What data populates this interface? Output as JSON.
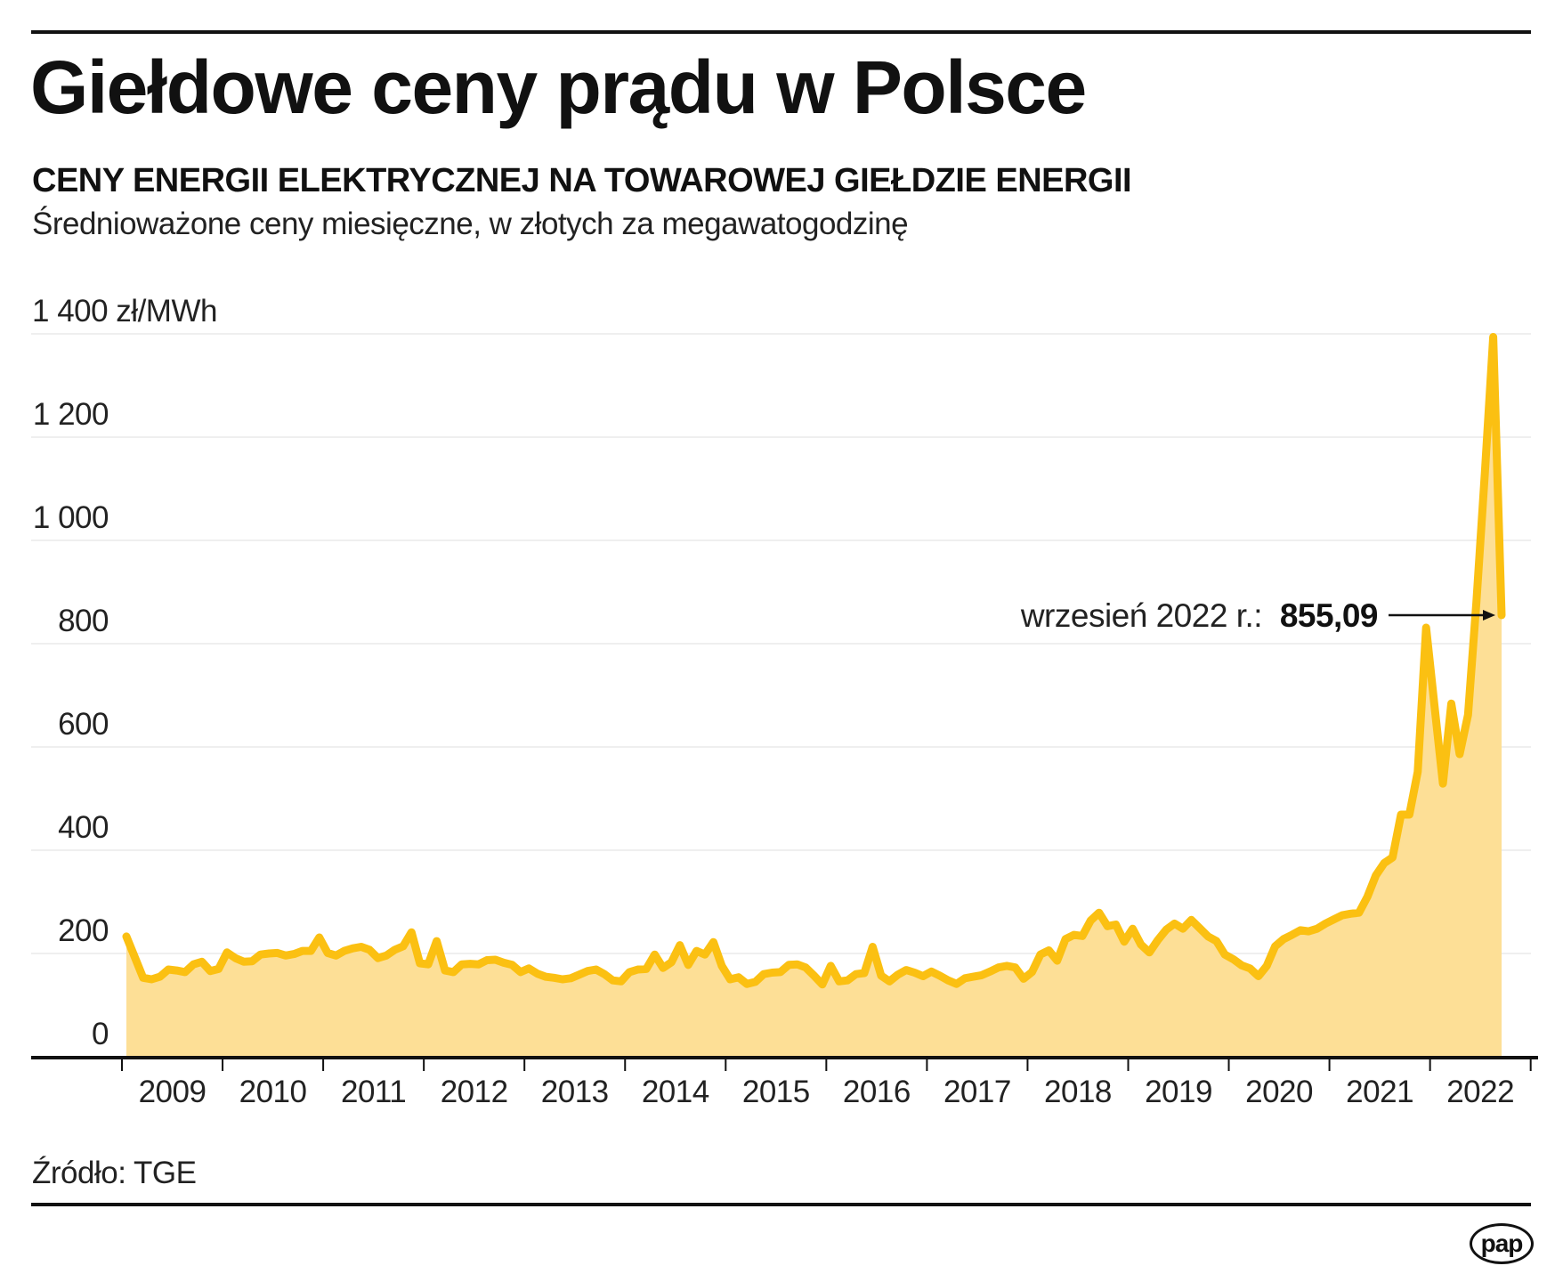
{
  "header": {
    "title": "Giełdowe ceny prądu w Polsce",
    "subtitle": "CENY ENERGII ELEKTRYCZNEJ NA TOWAROWEJ GIEŁDZIE ENERGII",
    "description": "Średnioważone ceny miesięczne, w złotych za megawatogodzinę"
  },
  "footer": {
    "source": "Źródło: TGE",
    "logo": "pap"
  },
  "colors": {
    "line": "#FBC012",
    "area": "#FDDF96",
    "grid": "#EFEFEF",
    "axis": "#111111",
    "text": "#222222"
  },
  "chart_data": {
    "type": "area",
    "title": "Giełdowe ceny prądu w Polsce",
    "subtitle": "CENY ENERGII ELEKTRYCZNEJ NA TOWAROWEJ GIEŁDZIE ENERGII",
    "xlabel": "",
    "ylabel": "zł/MWh",
    "ylim": [
      0,
      1400
    ],
    "yticks": [
      0,
      200,
      400,
      600,
      800,
      1000,
      1200,
      1400
    ],
    "ytick_labels": [
      "0",
      "200",
      "400",
      "600",
      "800",
      "1 000",
      "1 200",
      "1 400 zł/MWh"
    ],
    "grid": true,
    "legend": null,
    "x_start": "2009-01",
    "x_end": "2022-09",
    "x_frequency": "monthly",
    "x_tick_labels": [
      "2009",
      "2010",
      "2011",
      "2012",
      "2013",
      "2014",
      "2015",
      "2016",
      "2017",
      "2018",
      "2019",
      "2020",
      "2021",
      "2022"
    ],
    "series": [
      {
        "name": "Średnioważona cena miesięczna",
        "values": [
          233,
          193,
          153,
          150,
          155,
          169,
          167,
          164,
          179,
          184,
          166,
          170,
          202,
          191,
          184,
          185,
          198,
          200,
          201,
          196,
          199,
          205,
          205,
          231,
          201,
          196,
          205,
          210,
          213,
          207,
          191,
          196,
          207,
          214,
          241,
          181,
          179,
          224,
          167,
          164,
          179,
          180,
          179,
          187,
          188,
          182,
          178,
          164,
          171,
          161,
          155,
          153,
          150,
          152,
          159,
          166,
          169,
          160,
          148,
          146,
          164,
          169,
          170,
          198,
          172,
          183,
          216,
          178,
          205,
          198,
          222,
          176,
          150,
          154,
          141,
          145,
          160,
          163,
          164,
          178,
          179,
          173,
          157,
          140,
          176,
          146,
          148,
          160,
          162,
          213,
          157,
          146,
          159,
          168,
          163,
          156,
          165,
          157,
          148,
          141,
          152,
          155,
          158,
          165,
          173,
          176,
          173,
          151,
          164,
          198,
          206,
          186,
          228,
          236,
          234,
          264,
          279,
          253,
          256,
          223,
          248,
          217,
          202,
          226,
          246,
          258,
          248,
          265,
          249,
          233,
          224,
          198,
          189,
          177,
          171,
          156,
          176,
          214,
          228,
          236,
          245,
          243,
          248,
          258,
          266,
          274,
          277,
          279,
          310,
          351,
          375,
          386,
          469,
          469,
          552,
          831,
          680,
          529,
          684,
          586,
          662,
          880,
          1130,
          1394,
          855.09
        ]
      }
    ],
    "annotations": [
      {
        "label": "wrzesień 2022 r.:",
        "value": "855,09",
        "x": "2022-09",
        "y": 855.09
      }
    ]
  }
}
